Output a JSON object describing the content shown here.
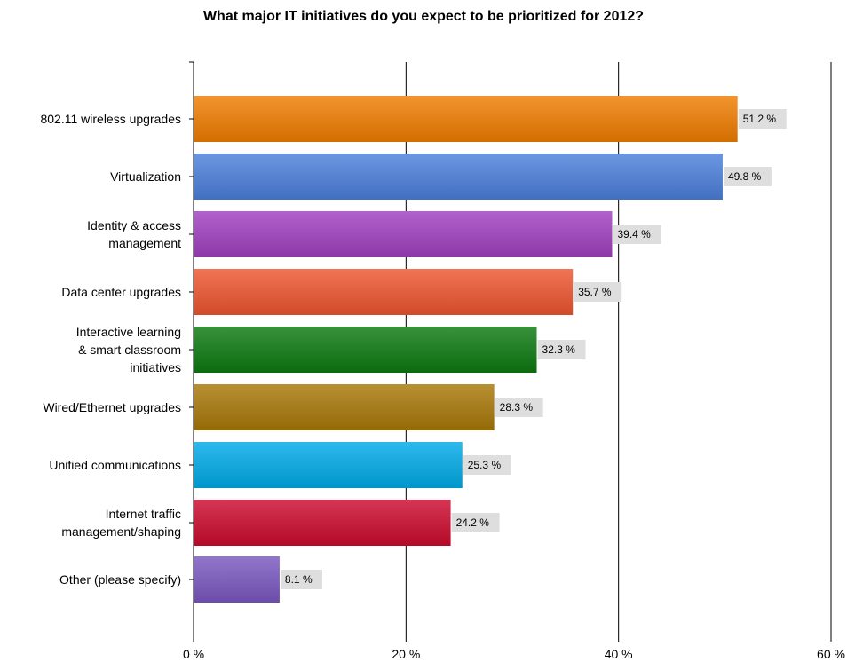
{
  "chart_data": {
    "type": "bar",
    "orientation": "horizontal",
    "title": "What major IT initiatives do you expect to be prioritized for 2012?",
    "xlabel": "",
    "ylabel": "",
    "xlim": [
      0,
      60
    ],
    "ticks": [
      "0 %",
      "20 %",
      "40 %",
      "60 %"
    ],
    "tick_values": [
      0,
      20,
      40,
      60
    ],
    "grid": true,
    "legend": "none",
    "categories": [
      [
        "802.11 wireless upgrades"
      ],
      [
        "Virtualization"
      ],
      [
        "Identity & access",
        "management"
      ],
      [
        "Data center upgrades"
      ],
      [
        "Interactive learning",
        "& smart classroom",
        "initiatives"
      ],
      [
        "Wired/Ethernet upgrades"
      ],
      [
        "Unified communications"
      ],
      [
        "Internet traffic",
        "management/shaping"
      ],
      [
        "Other (please specify)"
      ]
    ],
    "values": [
      51.2,
      49.8,
      39.4,
      35.7,
      32.3,
      28.3,
      25.3,
      24.2,
      8.1
    ],
    "value_labels": [
      "51.2 %",
      "49.8 %",
      "39.4 %",
      "35.7 %",
      "32.3 %",
      "28.3 %",
      "25.3 %",
      "24.2 %",
      "8.1 %"
    ],
    "colors": [
      "#f07d00",
      "#4b7fdb",
      "#a040c0",
      "#ee5530",
      "#0c7a10",
      "#a87808",
      "#00aae8",
      "#cc0a2e",
      "#7a58c0"
    ]
  }
}
